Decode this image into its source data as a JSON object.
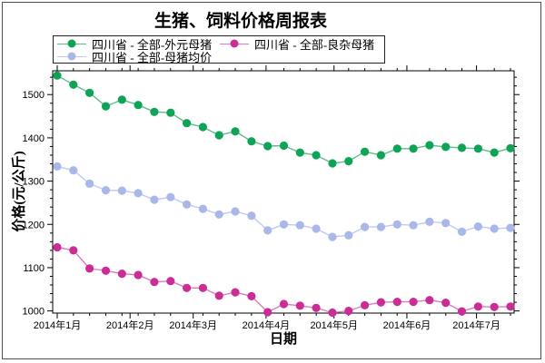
{
  "window": {
    "background": "#ffffff",
    "border_color": "#4d4d4d",
    "text_color": "#000000"
  },
  "chart_data": {
    "type": "line",
    "title": "生猪、饲料价格周报表",
    "xlabel": "日期",
    "ylabel": "价格(元/公斤)",
    "grid": false,
    "legend_position": "top-left",
    "n_points": 29,
    "ylim": [
      995,
      1555
    ],
    "y_major_ticks": [
      1000,
      1100,
      1200,
      1300,
      1400,
      1500
    ],
    "y_minor_step": 20,
    "x_tick_labels": [
      "2014年1月",
      "2014年2月",
      "2014年3月",
      "2014年4月",
      "2014年5月",
      "2014年6月",
      "2014年7月"
    ],
    "x_tick_indices": [
      0,
      4.5,
      8.4,
      12.9,
      17.1,
      21.6,
      25.9
    ],
    "series": [
      {
        "name": "四川省 - 全部-外元母猪",
        "marker_color": "#0fa355",
        "line_color": "#5fbd8c",
        "values": [
          1544,
          1523,
          1504,
          1473,
          1488,
          1476,
          1460,
          1458,
          1434,
          1425,
          1406,
          1415,
          1392,
          1381,
          1382,
          1366,
          1360,
          1341,
          1346,
          1368,
          1360,
          1375,
          1375,
          1383,
          1379,
          1377,
          1375,
          1366,
          1376
        ]
      },
      {
        "name": "四川省 - 全部-良杂母猪",
        "marker_color": "#cb2d96",
        "line_color": "#e07bbd",
        "values": [
          1147,
          1140,
          1098,
          1093,
          1086,
          1083,
          1067,
          1069,
          1053,
          1053,
          1035,
          1043,
          1034,
          997,
          1016,
          1012,
          1007,
          996,
          1000,
          1013,
          1020,
          1021,
          1021,
          1025,
          1019,
          999,
          1010,
          1009,
          1010
        ]
      },
      {
        "name": "四川省 - 全部-母猪均价",
        "marker_color": "#a9b7e9",
        "line_color": "#bfcaf1",
        "values": [
          1334,
          1325,
          1294,
          1279,
          1278,
          1272,
          1257,
          1263,
          1246,
          1236,
          1223,
          1230,
          1220,
          1186,
          1200,
          1198,
          1190,
          1171,
          1175,
          1194,
          1194,
          1200,
          1198,
          1206,
          1203,
          1183,
          1195,
          1190,
          1192
        ]
      }
    ]
  }
}
